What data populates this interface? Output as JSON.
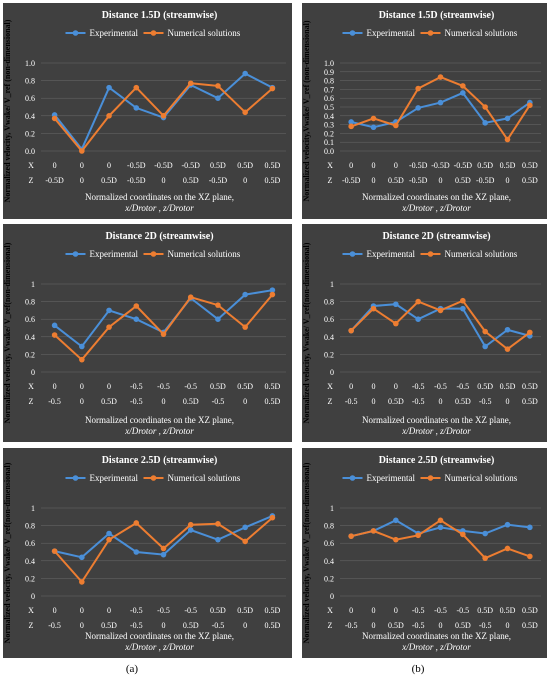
{
  "colors": {
    "panel_bg": "#404040",
    "experimental": "#4a8fd8",
    "numerical": "#ed7d31",
    "text": "#ffffff",
    "grid": "#6a6a6a"
  },
  "panel_labels": [
    "(a)",
    "(b)"
  ],
  "chart_data": [
    {
      "type": "line",
      "title": "Distance 1.5D (streamwise)",
      "ylabel": "Normalized velocity, Vwake/ V_ref (non-dimensional)",
      "xlabel_line1": "Normalized coordinates on the XZ plane,",
      "xlabel_line2": "x/Drotor , z/Drotor",
      "ylim": [
        0,
        1.0
      ],
      "yticks": [
        "0.0",
        "0.2",
        "0.4",
        "0.6",
        "0.8",
        "1.0"
      ],
      "x_row_label": "X",
      "z_row_label": "Z",
      "x_ticks": [
        "0",
        "0",
        "0",
        "-0.5D",
        "-0.5D",
        "-0.5D",
        "0.5D",
        "0.5D",
        "0.5D"
      ],
      "z_ticks": [
        "-0.5D",
        "0",
        "0.5D",
        "-0.5D",
        "0",
        "0.5D",
        "-0.5D",
        "0",
        "0.5D"
      ],
      "series": [
        {
          "name": "Experimental",
          "values": [
            0.41,
            0.02,
            0.72,
            0.49,
            0.38,
            0.75,
            0.6,
            0.88,
            0.72
          ]
        },
        {
          "name": "Numerical solutions",
          "values": [
            0.37,
            0.0,
            0.4,
            0.72,
            0.4,
            0.77,
            0.74,
            0.44,
            0.71
          ]
        }
      ]
    },
    {
      "type": "line",
      "title": "Distance 1.5D (streamwise)",
      "ylabel": "Normalized velocity,Vwake/ V_ref (non-dimensional)",
      "xlabel_line1": "Normalized coordinates on the XZ plane,",
      "xlabel_line2": "x/Drotor , z/Drotor",
      "ylim": [
        0,
        1.0
      ],
      "yticks": [
        "0.0",
        "0.1",
        "0.2",
        "0.3",
        "0.4",
        "0.5",
        "0.6",
        "0.7",
        "0.8",
        "0.9",
        "1.0"
      ],
      "x_row_label": "X",
      "z_row_label": "Z",
      "x_ticks": [
        "0",
        "0",
        "0",
        "-0.5D",
        "-0.5D",
        "-0.5D",
        "0.5D",
        "0.5D",
        "0.5D"
      ],
      "z_ticks": [
        "-0.5D",
        "0",
        "0.5D",
        "-0.5D",
        "0",
        "0.5D",
        "-0.5D",
        "0",
        "0.5D"
      ],
      "series": [
        {
          "name": "Experimental",
          "values": [
            0.33,
            0.27,
            0.33,
            0.49,
            0.55,
            0.66,
            0.32,
            0.37,
            0.55
          ]
        },
        {
          "name": "Numerical solutions",
          "values": [
            0.28,
            0.37,
            0.29,
            0.71,
            0.84,
            0.74,
            0.5,
            0.13,
            0.52
          ]
        }
      ]
    },
    {
      "type": "line",
      "title": "Distance 2D (streamwise)",
      "ylabel": "Normalized velocity, Vwake/ V_ref(non-dimensional)",
      "xlabel_line1": "Normalized coordinates on the XZ plane,",
      "xlabel_line2": "x/Drotor , z/Drotor",
      "ylim": [
        0,
        1.0
      ],
      "yticks": [
        "0",
        "0.2",
        "0.4",
        "0.6",
        "0.8",
        "1"
      ],
      "x_row_label": "X",
      "z_row_label": "Z",
      "x_ticks": [
        "0",
        "0",
        "0",
        "-0.5",
        "-0.5",
        "-0.5",
        "0.5D",
        "0.5D",
        "0.5D"
      ],
      "z_ticks": [
        "-0.5",
        "0",
        "0.5D",
        "-0.5",
        "0",
        "0.5D",
        "-0.5",
        "0",
        "0.5D"
      ],
      "series": [
        {
          "name": "Experimental",
          "values": [
            0.53,
            0.29,
            0.7,
            0.6,
            0.45,
            0.84,
            0.6,
            0.88,
            0.93
          ]
        },
        {
          "name": "Numerical solutions",
          "values": [
            0.42,
            0.14,
            0.51,
            0.75,
            0.43,
            0.85,
            0.76,
            0.51,
            0.88
          ]
        }
      ]
    },
    {
      "type": "line",
      "title": "Distance 2D (streamwise)",
      "ylabel": "Normalized velocity, Vwake/ V_ref(non-dimensional)",
      "xlabel_line1": "Normalized coordinates on the XZ plane,",
      "xlabel_line2": "x/Drotor , z/Drotor",
      "ylim": [
        0,
        1.0
      ],
      "yticks": [
        "0",
        "0.2",
        "0.4",
        "0.6",
        "0.8",
        "1"
      ],
      "x_row_label": "X",
      "z_row_label": "Z",
      "x_ticks": [
        "0",
        "0",
        "0",
        "-0.5",
        "-0.5",
        "-0.5",
        "0.5D",
        "0.5D",
        "0.5D"
      ],
      "z_ticks": [
        "-0.5",
        "0",
        "0.5D",
        "-0.5",
        "0",
        "0.5D",
        "-0.5",
        "0",
        "0.5D"
      ],
      "series": [
        {
          "name": "Experimental",
          "values": [
            0.47,
            0.75,
            0.77,
            0.6,
            0.72,
            0.72,
            0.29,
            0.48,
            0.41
          ]
        },
        {
          "name": "Numerical solutions",
          "values": [
            0.47,
            0.72,
            0.55,
            0.8,
            0.7,
            0.81,
            0.46,
            0.26,
            0.45
          ]
        }
      ]
    },
    {
      "type": "line",
      "title": "Distance 2.5D (streamwise)",
      "ylabel": "Normalized velocity, Vwake/ V_ref(non-dimensional)",
      "xlabel_line1": "Normalized coordinates on the XZ plane,",
      "xlabel_line2": "x/Drotor , z/Drotor",
      "ylim": [
        0,
        1.0
      ],
      "yticks": [
        "0",
        "0.2",
        "0.4",
        "0.6",
        "0.8",
        "1"
      ],
      "x_row_label": "X",
      "z_row_label": "Z",
      "x_ticks": [
        "0",
        "0",
        "0",
        "-0.5",
        "-0.5",
        "-0.5",
        "0.5D",
        "0.5D",
        "0.5D"
      ],
      "z_ticks": [
        "-0.5",
        "0",
        "0.5D",
        "-0.5",
        "0",
        "0.5D",
        "-0.5",
        "0",
        "0.5D"
      ],
      "series": [
        {
          "name": "Experimental",
          "values": [
            0.51,
            0.44,
            0.71,
            0.5,
            0.47,
            0.75,
            0.64,
            0.78,
            0.91
          ]
        },
        {
          "name": "Numerical solutions",
          "values": [
            0.51,
            0.16,
            0.64,
            0.83,
            0.54,
            0.81,
            0.82,
            0.62,
            0.89
          ]
        }
      ]
    },
    {
      "type": "line",
      "title": "Distance 2.5D (streamwise)",
      "ylabel": "Normalized velocity, Vwake/ V_ref(non-dimensional)",
      "xlabel_line1": "Normalized coordinates on the XZ plane,",
      "xlabel_line2": "x/Drotor , z/Drotor",
      "ylim": [
        0,
        1.0
      ],
      "yticks": [
        "0",
        "0.2",
        "0.4",
        "0.6",
        "0.8",
        "1"
      ],
      "x_row_label": "X",
      "z_row_label": "Z",
      "x_ticks": [
        "0",
        "0",
        "0",
        "-0.5",
        "-0.5",
        "-0.5",
        "0.5D",
        "0.5D",
        "0.5D"
      ],
      "z_ticks": [
        "-0.5",
        "0",
        "0.5D",
        "-0.5",
        "0",
        "0.5D",
        "-0.5",
        "0",
        "0.5D"
      ],
      "series": [
        {
          "name": "Experimental",
          "values": [
            0.68,
            0.74,
            0.86,
            0.71,
            0.78,
            0.74,
            0.71,
            0.81,
            0.78
          ]
        },
        {
          "name": "Numerical solutions",
          "values": [
            0.68,
            0.74,
            0.64,
            0.69,
            0.86,
            0.7,
            0.43,
            0.54,
            0.45
          ]
        }
      ]
    }
  ]
}
